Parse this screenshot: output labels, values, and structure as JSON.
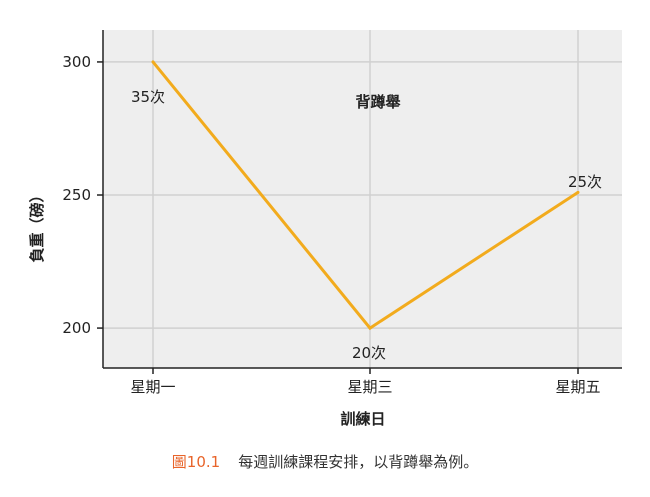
{
  "chart_data": {
    "type": "line",
    "title": "背蹲舉",
    "xlabel": "訓練日",
    "ylabel": "負重（磅）",
    "categories": [
      "星期一",
      "星期三",
      "星期五"
    ],
    "values": [
      300,
      200,
      251
    ],
    "point_labels": [
      "35次",
      "20次",
      "25次"
    ],
    "ylim": [
      185,
      312
    ],
    "yticks": [
      200,
      250,
      300
    ],
    "grid": true,
    "colors": {
      "line": "#f2ab1d",
      "plot_bg": "#eeeeee",
      "grid": "#d0d0d0"
    }
  },
  "caption": {
    "number": "圖10.1",
    "text": "每週訓練課程安排，以背蹲舉為例。"
  }
}
